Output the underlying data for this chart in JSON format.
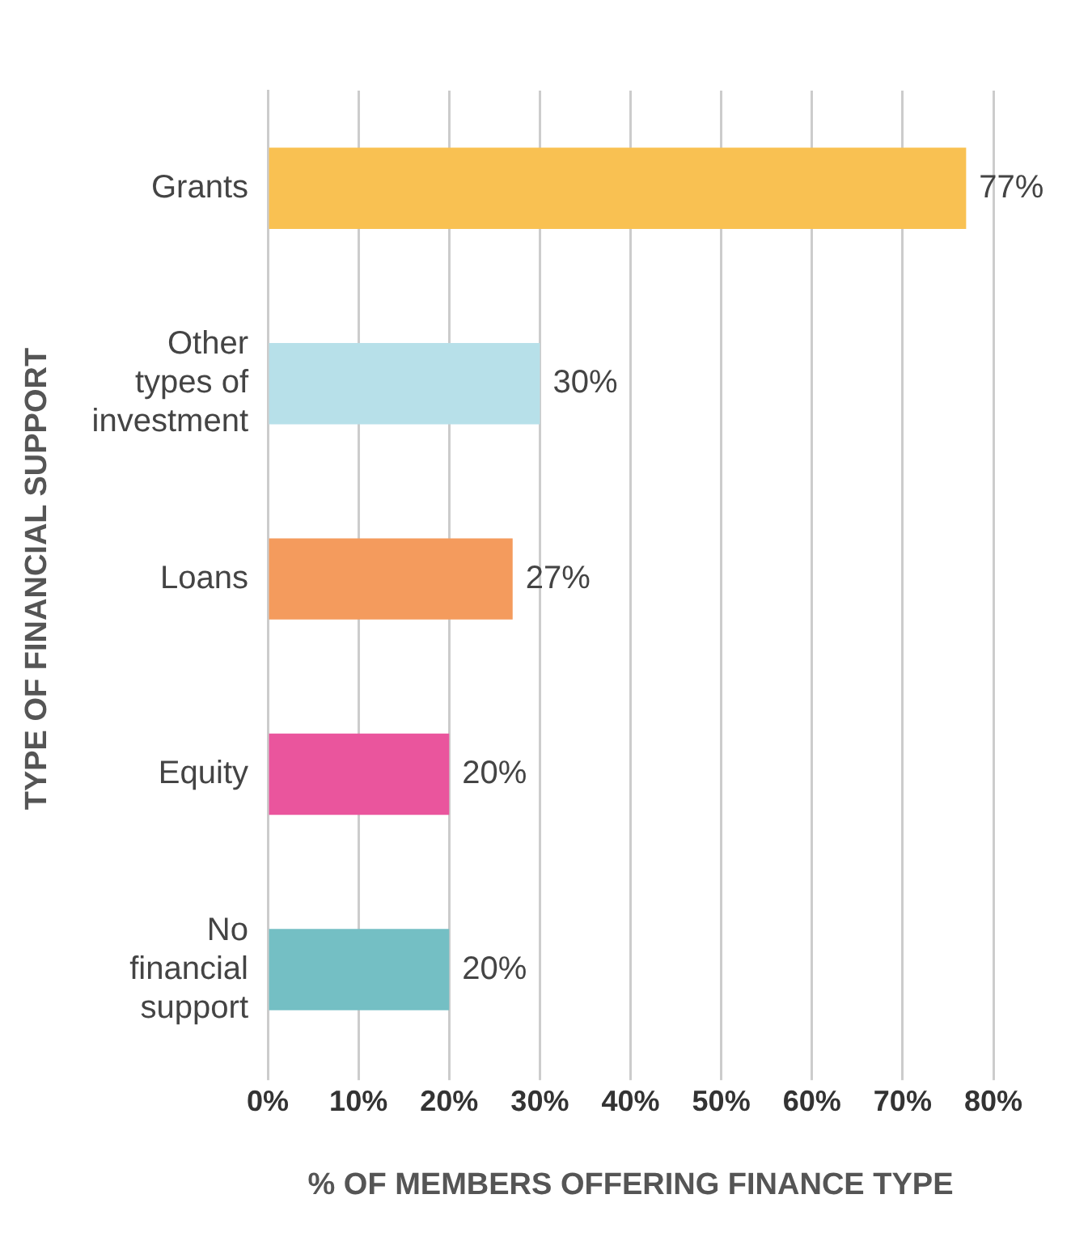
{
  "chart_data": {
    "type": "bar",
    "orientation": "horizontal",
    "xlabel": "% OF MEMBERS OFFERING FINANCE TYPE",
    "ylabel": "TYPE OF FINANCIAL SUPPORT",
    "categories": [
      "Grants",
      "Other types of investment",
      "Loans",
      "Equity",
      "No financial support"
    ],
    "values": [
      77,
      30,
      27,
      20,
      20
    ],
    "colors": [
      "#f9c152",
      "#b7e0e9",
      "#f49b5d",
      "#ea559d",
      "#74bfc4"
    ],
    "value_labels": [
      "77%",
      "30%",
      "27%",
      "20%",
      "20%"
    ],
    "xlim": [
      0,
      80
    ],
    "xticks": [
      {
        "value": 0,
        "label": "0%"
      },
      {
        "value": 10,
        "label": "10%"
      },
      {
        "value": 20,
        "label": "20%"
      },
      {
        "value": 30,
        "label": "30%"
      },
      {
        "value": 40,
        "label": "40%"
      },
      {
        "value": 50,
        "label": "50%"
      },
      {
        "value": 60,
        "label": "60%"
      },
      {
        "value": 70,
        "label": "70%"
      },
      {
        "value": 80,
        "label": "80%"
      }
    ],
    "grid": "x",
    "legend": false
  }
}
